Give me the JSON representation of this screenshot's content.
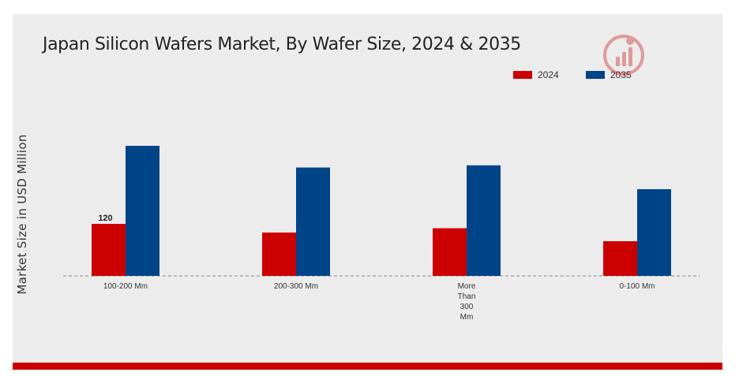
{
  "chart_data": {
    "type": "bar",
    "title": "Japan Silicon Wafers Market, By Wafer Size, 2024 & 2035",
    "xlabel": "",
    "ylabel": "Market Size in USD Million",
    "categories": [
      "100-200 Mm",
      "200-300 Mm",
      "More\nThan\n300\nMm",
      "0-100 Mm"
    ],
    "series": [
      {
        "name": "2024",
        "color": "#cc0000",
        "values": [
          120,
          100,
          110,
          80
        ]
      },
      {
        "name": "2035",
        "color": "#004488",
        "values": [
          300,
          250,
          255,
          200
        ]
      }
    ],
    "data_labels": [
      {
        "series": 0,
        "index": 0,
        "text": "120"
      }
    ],
    "ylim": [
      0,
      400
    ],
    "grid": false,
    "legend_position": "top-right"
  }
}
